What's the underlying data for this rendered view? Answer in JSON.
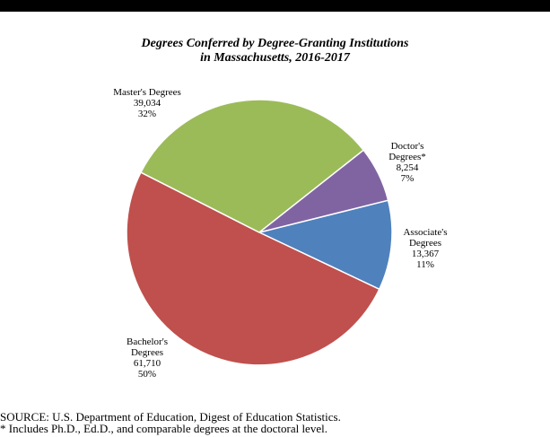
{
  "chart_data": {
    "type": "pie",
    "title_lines": [
      "Degrees Conferred by Degree-Granting Institutions",
      "in Massachusetts, 2016-2017"
    ],
    "slices": [
      {
        "label_lines": [
          "Associate's",
          "Degrees"
        ],
        "value": 13367,
        "value_text": "13,367",
        "percent": "11%",
        "color": "#4f81bd"
      },
      {
        "label_lines": [
          "Bachelor's",
          "Degrees"
        ],
        "value": 61710,
        "value_text": "61,710",
        "percent": "50%",
        "color": "#c0504d"
      },
      {
        "label_lines": [
          "Master's Degrees"
        ],
        "value": 39034,
        "value_text": "39,034",
        "percent": "32%",
        "color": "#9bbb59"
      },
      {
        "label_lines": [
          "Doctor's",
          "Degrees*"
        ],
        "value": 8254,
        "value_text": "8,254",
        "percent": "7%",
        "color": "#8064a2"
      }
    ]
  },
  "footnotes": [
    "SOURCE: U.S. Department of Education, Digest of Education Statistics.",
    "* Includes Ph.D., Ed.D., and comparable degrees at the doctoral level."
  ]
}
